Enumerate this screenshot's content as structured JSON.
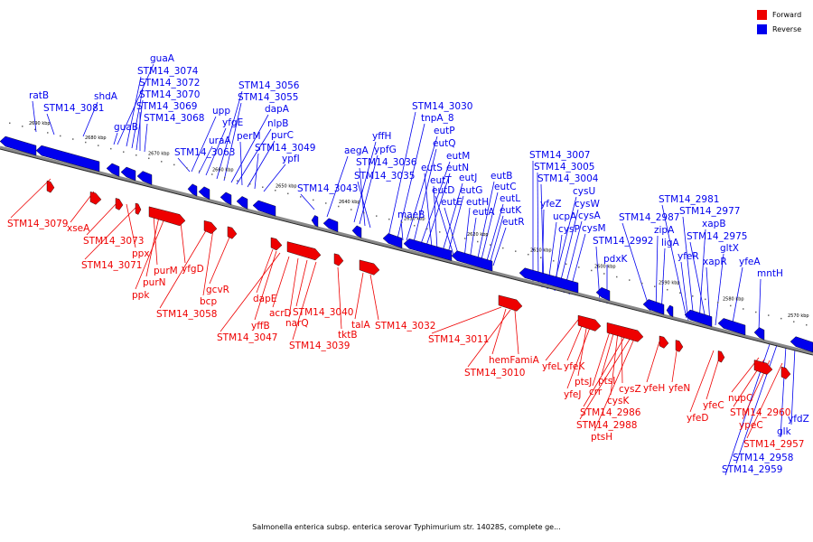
{
  "legend": {
    "forward": "Forward",
    "reverse": "Reverse"
  },
  "colors": {
    "forward": "#ee0000",
    "reverse": "#0000ee",
    "backbone": "#888888"
  },
  "caption": "Salmonella enterica subsp. enterica serovar Typhimurium str. 14028S, complete ge...",
  "scale_ticks": [
    "2690 kbp",
    "2680 kbp",
    "2670 kbp",
    "2660 kbp",
    "2650 kbp",
    "2640 kbp",
    "2630 kbp",
    "2620 kbp",
    "2610 kbp",
    "2600 kbp",
    "2590 kbp",
    "2580 kbp",
    "2570 kbp"
  ],
  "reverse_labels": [
    "ratB",
    "STM14_3081",
    "shdA",
    "guaA",
    "STM14_3074",
    "STM14_3072",
    "STM14_3070",
    "STM14_3069",
    "STM14_3068",
    "guaB",
    "STM14_3063",
    "upp",
    "uraA",
    "yfgE",
    "STM14_3056",
    "STM14_3055",
    "dapA",
    "nlpB",
    "perM",
    "purC",
    "STM14_3049",
    "ypfI",
    "STM14_3043",
    "aegA",
    "yffH",
    "ypfG",
    "STM14_3036",
    "STM14_3035",
    "STM14_3030",
    "tnpA_8",
    "eutP",
    "eutQ",
    "eutM",
    "eutN",
    "eutS",
    "eutT",
    "eutJ",
    "eutG",
    "eutD",
    "eutE",
    "eutH",
    "eutA",
    "maeB",
    "eutB",
    "eutC",
    "eutL",
    "eutK",
    "eutR",
    "STM14_3007",
    "STM14_3005",
    "STM14_3004",
    "cysU",
    "cysW",
    "cysA",
    "cysM",
    "ucpA",
    "cysP",
    "yfeZ",
    "STM14_2992",
    "pdxK",
    "STM14_2987",
    "zipA",
    "ligA",
    "STM14_2981",
    "STM14_2977",
    "xapB",
    "STM14_2975",
    "yfeR",
    "gltX",
    "xapR",
    "yfeA",
    "mntH",
    "yfdZ",
    "glk",
    "STM14_2958",
    "STM14_2959"
  ],
  "forward_labels": [
    "STM14_3079",
    "xseA",
    "STM14_3073",
    "ppx",
    "STM14_3071",
    "purM",
    "purN",
    "ppk",
    "yfgD",
    "STM14_3058",
    "bcp",
    "gcvR",
    "dapE",
    "yffB",
    "STM14_3047",
    "acrD",
    "narQ",
    "STM14_3040",
    "STM14_3039",
    "tktB",
    "talA",
    "STM14_3032",
    "STM14_3011",
    "hemF",
    "amiA",
    "STM14_3010",
    "yfeL",
    "yfeK",
    "ptsJ",
    "yfeJ",
    "crr",
    "ptsI",
    "cysK",
    "cysZ",
    "STM14_2986",
    "STM14_2988",
    "ptsH",
    "yfeH",
    "yfeN",
    "yfeD",
    "yfeC",
    "nupC",
    "STM14_2960",
    "ypeC",
    "STM14_2957"
  ]
}
